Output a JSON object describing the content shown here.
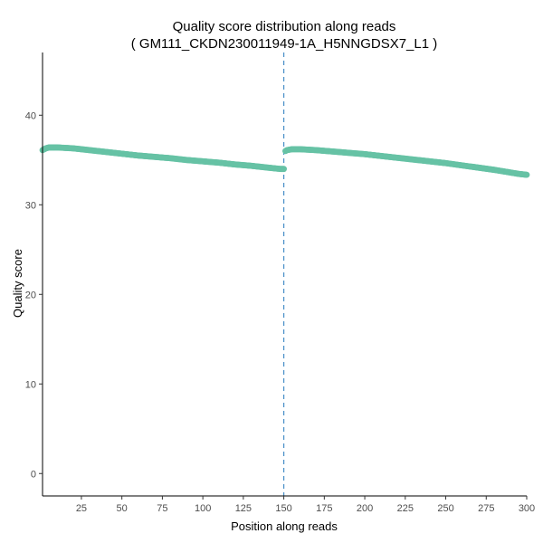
{
  "chart_data": {
    "type": "scatter",
    "title": "Quality score distribution along reads",
    "subtitle": "( GM111_CKDN230011949-1A_H5NNGDSX7_L1 )",
    "xlabel": "Position along reads",
    "ylabel": "Quality score",
    "xlim": [
      1,
      300
    ],
    "ylim": [
      -2.5,
      47
    ],
    "x_ticks": [
      25,
      50,
      75,
      100,
      125,
      150,
      175,
      200,
      225,
      250,
      275,
      300
    ],
    "y_ticks": [
      0,
      10,
      20,
      30,
      40
    ],
    "grid": false,
    "point_color": "#66c2a5",
    "vline": {
      "x": 150,
      "color": "#4a90c8",
      "style": "dashed"
    },
    "series": [
      {
        "x": [
          1,
          2,
          3,
          5,
          10,
          20,
          30,
          40,
          50,
          60,
          70,
          80,
          90,
          100,
          110,
          120,
          130,
          140,
          148,
          150
        ],
        "y": [
          36.1,
          36.2,
          36.3,
          36.4,
          36.4,
          36.3,
          36.1,
          35.9,
          35.7,
          35.5,
          35.35,
          35.2,
          35.0,
          34.85,
          34.7,
          34.5,
          34.35,
          34.15,
          34.0,
          34.0
        ]
      },
      {
        "x": [
          151,
          152,
          155,
          160,
          170,
          180,
          190,
          200,
          210,
          220,
          230,
          240,
          250,
          260,
          270,
          280,
          290,
          295,
          300
        ],
        "y": [
          36.0,
          36.1,
          36.2,
          36.2,
          36.1,
          35.95,
          35.8,
          35.65,
          35.45,
          35.25,
          35.05,
          34.85,
          34.65,
          34.4,
          34.15,
          33.9,
          33.6,
          33.45,
          33.35
        ]
      }
    ]
  }
}
